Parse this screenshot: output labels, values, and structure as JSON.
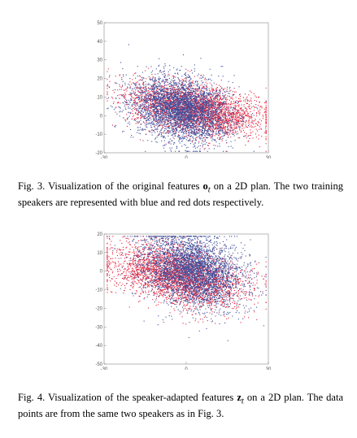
{
  "figures": [
    {
      "id": "fig3",
      "chart_data": {
        "type": "scatter",
        "title": "",
        "xlabel": "",
        "ylabel": "",
        "xlim": [
          -30,
          30
        ],
        "ylim": [
          -20,
          50
        ],
        "xticks": [
          "-30",
          "0",
          "30"
        ],
        "yticks": [
          "50",
          "40",
          "30",
          "20",
          "10",
          "0",
          "-10",
          "-20"
        ],
        "grid": false,
        "colors": {
          "speaker_1": "#3d4f9c",
          "speaker_2": "#e8213b"
        },
        "series": [
          {
            "color": "#e8213b",
            "cloud": {
              "cx": 3,
              "cy": 3.5,
              "sx": 12,
              "sy": 6.5,
              "tilt": -0.45,
              "n": 3200
            }
          },
          {
            "color": "#3d4f9c",
            "cloud": {
              "cx": -2,
              "cy": 4,
              "sx": 9,
              "sy": 8.5,
              "tilt": -0.25,
              "n": 3600
            }
          }
        ]
      },
      "caption": {
        "prefix": "Fig. 3.  Visualization of the original features ",
        "symbol": "o",
        "subscript": "t",
        "suffix": " on a 2D plan. The two training speakers are represented with blue and red dots respectively."
      }
    },
    {
      "id": "fig4",
      "chart_data": {
        "type": "scatter",
        "title": "",
        "xlabel": "",
        "ylabel": "",
        "xlim": [
          -30,
          30
        ],
        "ylim": [
          -50,
          20
        ],
        "xticks": [
          "-30",
          "0",
          "30"
        ],
        "yticks": [
          "20",
          "10",
          "0",
          "-10",
          "-20",
          "-30",
          "-40",
          "-50"
        ],
        "grid": false,
        "colors": {
          "speaker_1": "#3d4f9c",
          "speaker_2": "#e8213b"
        },
        "series": [
          {
            "color": "#e8213b",
            "cloud": {
              "cx": -3,
              "cy": -2,
              "sx": 12,
              "sy": 7.5,
              "tilt": -0.5,
              "n": 3200
            }
          },
          {
            "color": "#3d4f9c",
            "cloud": {
              "cx": 2,
              "cy": 1,
              "sx": 9,
              "sy": 9.5,
              "tilt": -0.3,
              "n": 3600
            }
          }
        ]
      },
      "caption": {
        "prefix": "Fig. 4.  Visualization of the speaker-adapted features ",
        "symbol": "z",
        "subscript": "t",
        "suffix": " on a 2D plan. The data points are from the same two speakers as in Fig. 3."
      }
    }
  ]
}
